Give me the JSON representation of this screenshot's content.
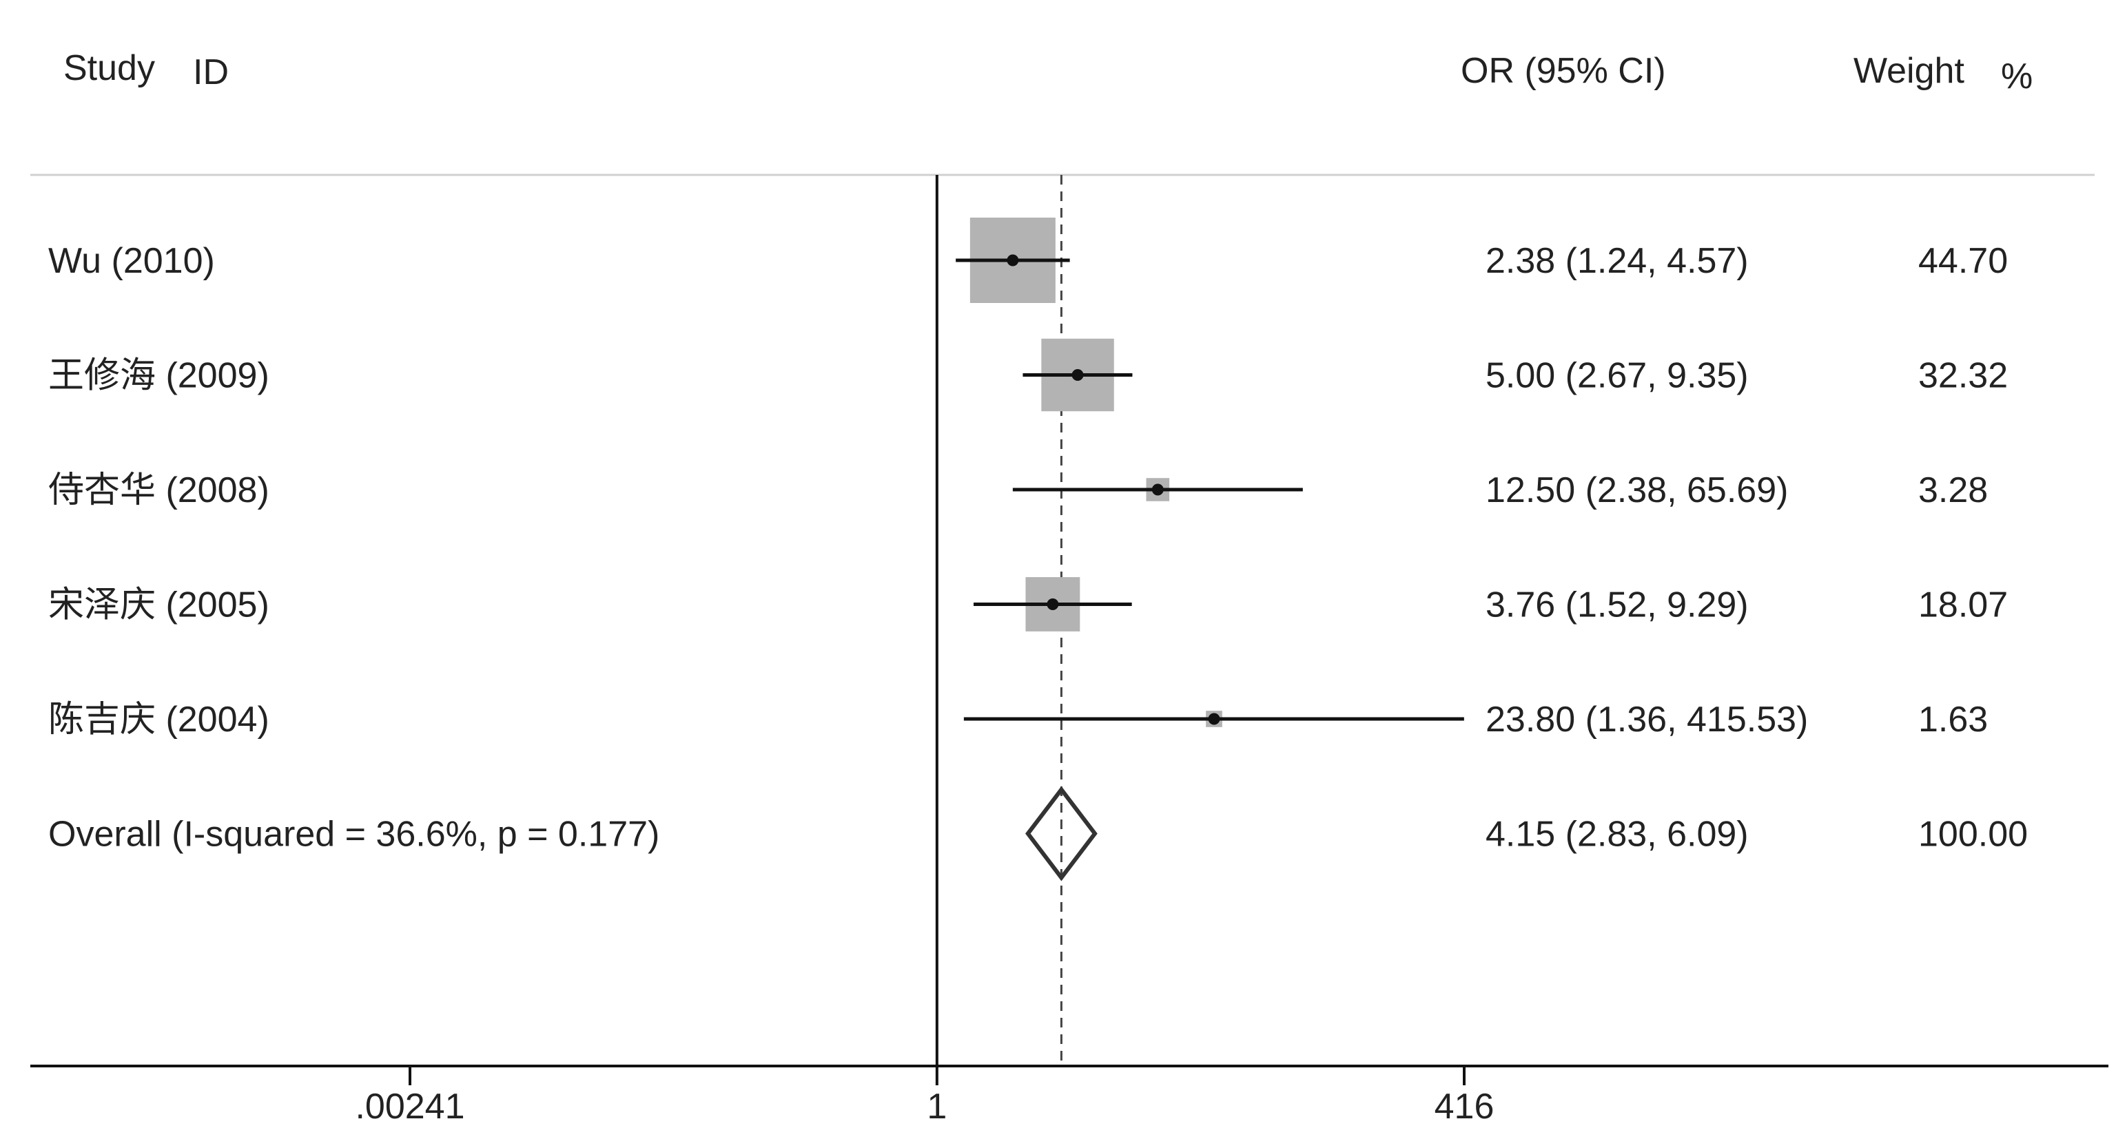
{
  "chart_data": {
    "type": "forest",
    "scale": "log",
    "headers": {
      "study": "Study",
      "id": "ID",
      "effect": "OR (95% CI)",
      "weight": "Weight",
      "weight_unit": "%"
    },
    "xticks": [
      {
        "value": 0.00241,
        "label": ".00241"
      },
      {
        "value": 1,
        "label": "1"
      },
      {
        "value": 416,
        "label": "416"
      }
    ],
    "null_value": 1,
    "studies": [
      {
        "label": "Wu (2010)",
        "or": 2.38,
        "lower": 1.24,
        "upper": 4.57,
        "ci_text": "2.38 (1.24, 4.57)",
        "weight": 44.7,
        "weight_text": "44.70"
      },
      {
        "label": "王修海 (2009)",
        "or": 5.0,
        "lower": 2.67,
        "upper": 9.35,
        "ci_text": "5.00 (2.67, 9.35)",
        "weight": 32.32,
        "weight_text": "32.32"
      },
      {
        "label": "侍杏华 (2008)",
        "or": 12.5,
        "lower": 2.38,
        "upper": 65.69,
        "ci_text": "12.50 (2.38, 65.69)",
        "weight": 3.28,
        "weight_text": "3.28"
      },
      {
        "label": "宋泽庆 (2005)",
        "or": 3.76,
        "lower": 1.52,
        "upper": 9.29,
        "ci_text": "3.76 (1.52, 9.29)",
        "weight": 18.07,
        "weight_text": "18.07"
      },
      {
        "label": "陈吉庆 (2004)",
        "or": 23.8,
        "lower": 1.36,
        "upper": 415.53,
        "ci_text": "23.80 (1.36, 415.53)",
        "weight": 1.63,
        "weight_text": "1.63"
      }
    ],
    "overall": {
      "label": "Overall  (I-squared = 36.6%, p = 0.177)",
      "or": 4.15,
      "lower": 2.83,
      "upper": 6.09,
      "ci_text": "4.15 (2.83, 6.09)",
      "weight_text": "100.00"
    },
    "colors": {
      "box": "#b3b3b3",
      "line": "#111111",
      "diamond": "#333333",
      "text": "#222222",
      "rule": "#d0d0d0"
    }
  }
}
